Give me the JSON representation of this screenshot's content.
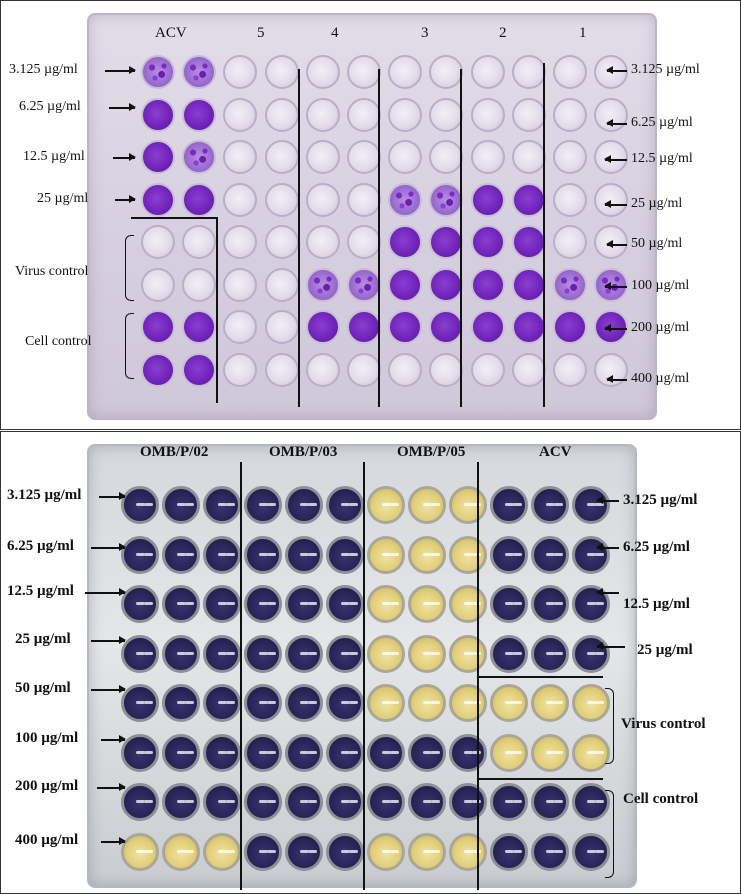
{
  "top_panel": {
    "column_headers": [
      "ACV",
      "5",
      "4",
      "3",
      "2",
      "1"
    ],
    "left_labels": [
      "3.125 µg/ml",
      "6.25 µg/ml",
      "12.5 µg/ml",
      "25 µg/ml",
      "Virus control",
      "Cell control"
    ],
    "right_labels": [
      "3.125 µg/ml",
      "6.25 µg/ml",
      "12.5 µg/ml",
      "25 µg/ml",
      "50 µg/ml",
      "100 µg/ml",
      "200 µg/ml",
      "400 µg/ml"
    ]
  },
  "bottom_panel": {
    "column_headers": [
      "OMB/P/02",
      "OMB/P/03",
      "OMB/P/05",
      "ACV"
    ],
    "left_labels": [
      "3.125 µg/ml",
      "6.25 µg/ml",
      "12.5 µg/ml",
      "25 µg/ml",
      "50 µg/ml",
      "100 µg/ml",
      "200 µg/ml",
      "400 µg/ml"
    ],
    "right_labels": [
      "3.125 µg/ml",
      "6.25 µg/ml",
      "12.5 µg/ml",
      "25 µg/ml",
      "Virus control",
      "Cell control"
    ]
  },
  "colors": {
    "crystal_violet": "#6e22b8",
    "mtt_dark": "#2a2458",
    "mtt_yellow": "#e2cf7a"
  }
}
